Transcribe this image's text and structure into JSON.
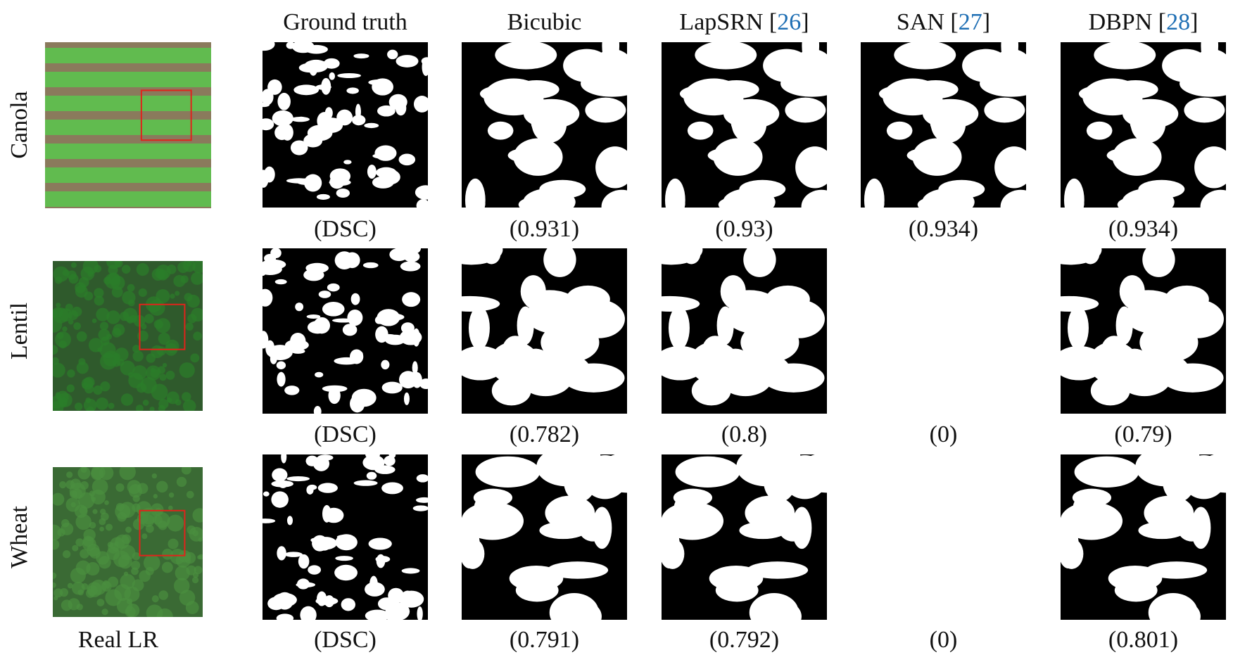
{
  "columns": [
    {
      "text": "Ground truth"
    },
    {
      "text": "Bicubic"
    },
    {
      "text": "LapSRN [",
      "ref": "26",
      "end": "]"
    },
    {
      "text": "SAN [",
      "ref": "27",
      "end": "]"
    },
    {
      "text": "DBPN [",
      "ref": "28",
      "end": "]"
    }
  ],
  "rows": [
    {
      "label": "Canola",
      "scores": [
        "(DSC)",
        "(0.931)",
        "(0.93)",
        "(0.934)",
        "(0.934)"
      ]
    },
    {
      "label": "Lentil",
      "scores": [
        "(DSC)",
        "(0.782)",
        "(0.8)",
        "(0)",
        "(0.79)"
      ]
    },
    {
      "label": "Wheat",
      "scores": [
        "(DSC)",
        "(0.791)",
        "(0.792)",
        "(0)",
        "(0.801)"
      ]
    }
  ],
  "footer": "Real LR"
}
